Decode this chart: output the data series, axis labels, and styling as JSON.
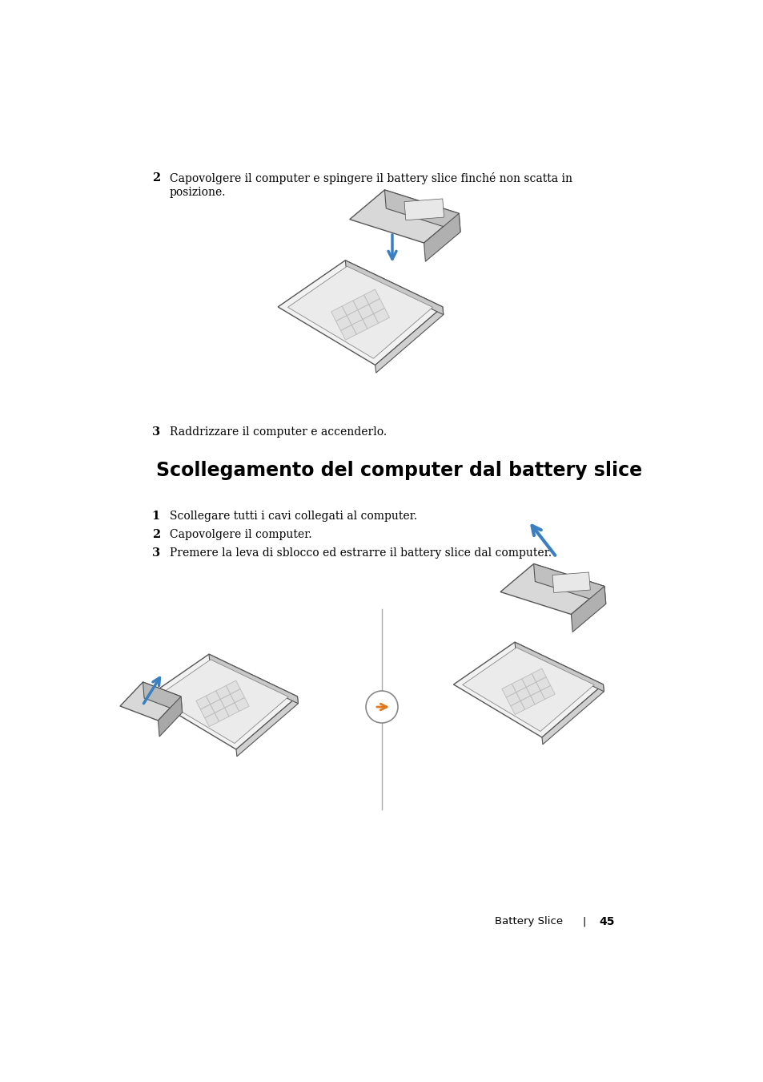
{
  "bg_color": "#ffffff",
  "text_color": "#000000",
  "step2_number": "2",
  "step2_text_line1": "Capovolgere il computer e spingere il battery slice finché non scatta in",
  "step2_text_line2": "posizione.",
  "step3_number": "3",
  "step3_text": "Raddrizzare il computer e accenderlo.",
  "section_title": "Scollegamento del computer dal battery slice",
  "sub1_number": "1",
  "sub1_text": "Scollegare tutti i cavi collegati al computer.",
  "sub2_number": "2",
  "sub2_text": "Capovolgere il computer.",
  "sub3_number": "3",
  "sub3_text": "Premere la leva di sblocco ed estrarre il battery slice dal computer.",
  "footer_text": "Battery Slice",
  "footer_sep": "|",
  "footer_page": "45",
  "arrow_blue": "#3a7fc1",
  "arrow_orange": "#e07820",
  "edge_color": "#555555",
  "face_light": "#f2f2f2",
  "face_mid": "#d8d8d8",
  "face_dark": "#aaaaaa",
  "grid_face": "#e0e0e0",
  "grid_edge": "#bbbbbb"
}
